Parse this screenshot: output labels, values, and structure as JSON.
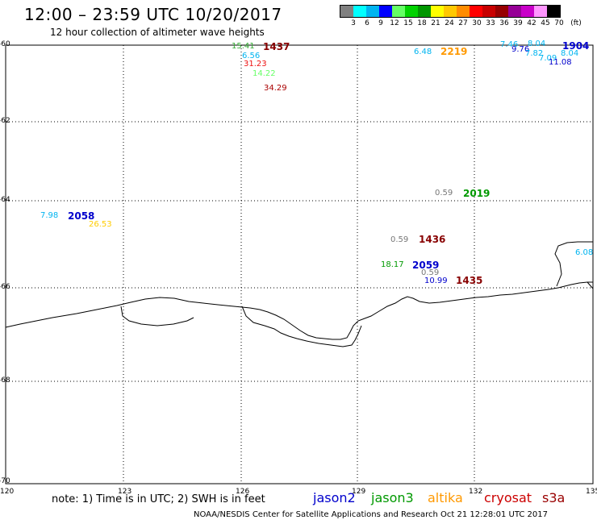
{
  "title": "12:00 – 23:59 UTC 10/20/2017",
  "subtitle": "12 hour collection of altimeter wave heights",
  "legend": {
    "unit": "(ft)",
    "colors": [
      "#808080",
      "#00ffff",
      "#00b4f0",
      "#0000ff",
      "#64ff64",
      "#00d200",
      "#009600",
      "#ffff00",
      "#ffc800",
      "#ff8c00",
      "#ff0000",
      "#c80000",
      "#960000",
      "#960096",
      "#c800c8",
      "#ff96ff",
      "#000000"
    ],
    "labels": [
      "3",
      "6",
      "9",
      "12",
      "15",
      "18",
      "21",
      "24",
      "27",
      "30",
      "33",
      "36",
      "39",
      "42",
      "45",
      "70"
    ]
  },
  "axes": {
    "lat_labels": [
      "-60",
      "-62",
      "-64",
      "-66",
      "-68",
      "-70"
    ],
    "lon_labels": [
      "120",
      "123",
      "126",
      "129",
      "132",
      "135"
    ]
  },
  "note": "note: 1) Time is in UTC; 2) SWH is in feet",
  "satellites": [
    {
      "name": "jason2",
      "color": "#0000cc"
    },
    {
      "name": "jason3",
      "color": "#009900"
    },
    {
      "name": "altika",
      "color": "#ff9900"
    },
    {
      "name": "cryosat",
      "color": "#cc0000"
    },
    {
      "name": "s3a",
      "color": "#990000"
    }
  ],
  "footer": "NOAA/NESDIS Center for Satellite Applications and Research     Oct 21 12:28:01 UTC 2017",
  "observations": [
    {
      "text": "15.41",
      "color": "#33aa33",
      "kind": "swh"
    },
    {
      "text": "1437",
      "color": "#880000",
      "kind": "time"
    },
    {
      "text": "6.56",
      "color": "#00b4f0",
      "kind": "swh"
    },
    {
      "text": "31.23",
      "color": "#ee1111",
      "kind": "swh"
    },
    {
      "text": "14.22",
      "color": "#66ff66",
      "kind": "swh"
    },
    {
      "text": "34.29",
      "color": "#aa0000",
      "kind": "swh"
    },
    {
      "text": "6.48",
      "color": "#00b4f0",
      "kind": "swh"
    },
    {
      "text": "2219",
      "color": "#ff9900",
      "kind": "time"
    },
    {
      "text": "7.46",
      "color": "#00b4f0",
      "kind": "swh"
    },
    {
      "text": "8.04",
      "color": "#00b4f0",
      "kind": "swh"
    },
    {
      "text": "1904",
      "color": "#0000cc",
      "kind": "time"
    },
    {
      "text": "9.76",
      "color": "#0000cc",
      "kind": "swh"
    },
    {
      "text": "7.82",
      "color": "#00b4f0",
      "kind": "swh"
    },
    {
      "text": "8.04",
      "color": "#00b4f0",
      "kind": "swh"
    },
    {
      "text": "7.09",
      "color": "#00b4f0",
      "kind": "swh"
    },
    {
      "text": "11.08",
      "color": "#0000cc",
      "kind": "swh"
    },
    {
      "text": "0.59",
      "color": "#777777",
      "kind": "swh"
    },
    {
      "text": "2019",
      "color": "#009900",
      "kind": "time"
    },
    {
      "text": "7.98",
      "color": "#00b4f0",
      "kind": "swh"
    },
    {
      "text": "2058",
      "color": "#0000cc",
      "kind": "time"
    },
    {
      "text": "26.53",
      "color": "#ffcc00",
      "kind": "swh"
    },
    {
      "text": "0.59",
      "color": "#777777",
      "kind": "swh"
    },
    {
      "text": "1436",
      "color": "#880000",
      "kind": "time"
    },
    {
      "text": "6.08",
      "color": "#00b4f0",
      "kind": "swh"
    },
    {
      "text": "18.17",
      "color": "#009900",
      "kind": "swh"
    },
    {
      "text": "2059",
      "color": "#0000cc",
      "kind": "time"
    },
    {
      "text": "0.59",
      "color": "#777777",
      "kind": "swh"
    },
    {
      "text": "10.99",
      "color": "#0000cc",
      "kind": "swh"
    },
    {
      "text": "1435",
      "color": "#880000",
      "kind": "time"
    }
  ]
}
